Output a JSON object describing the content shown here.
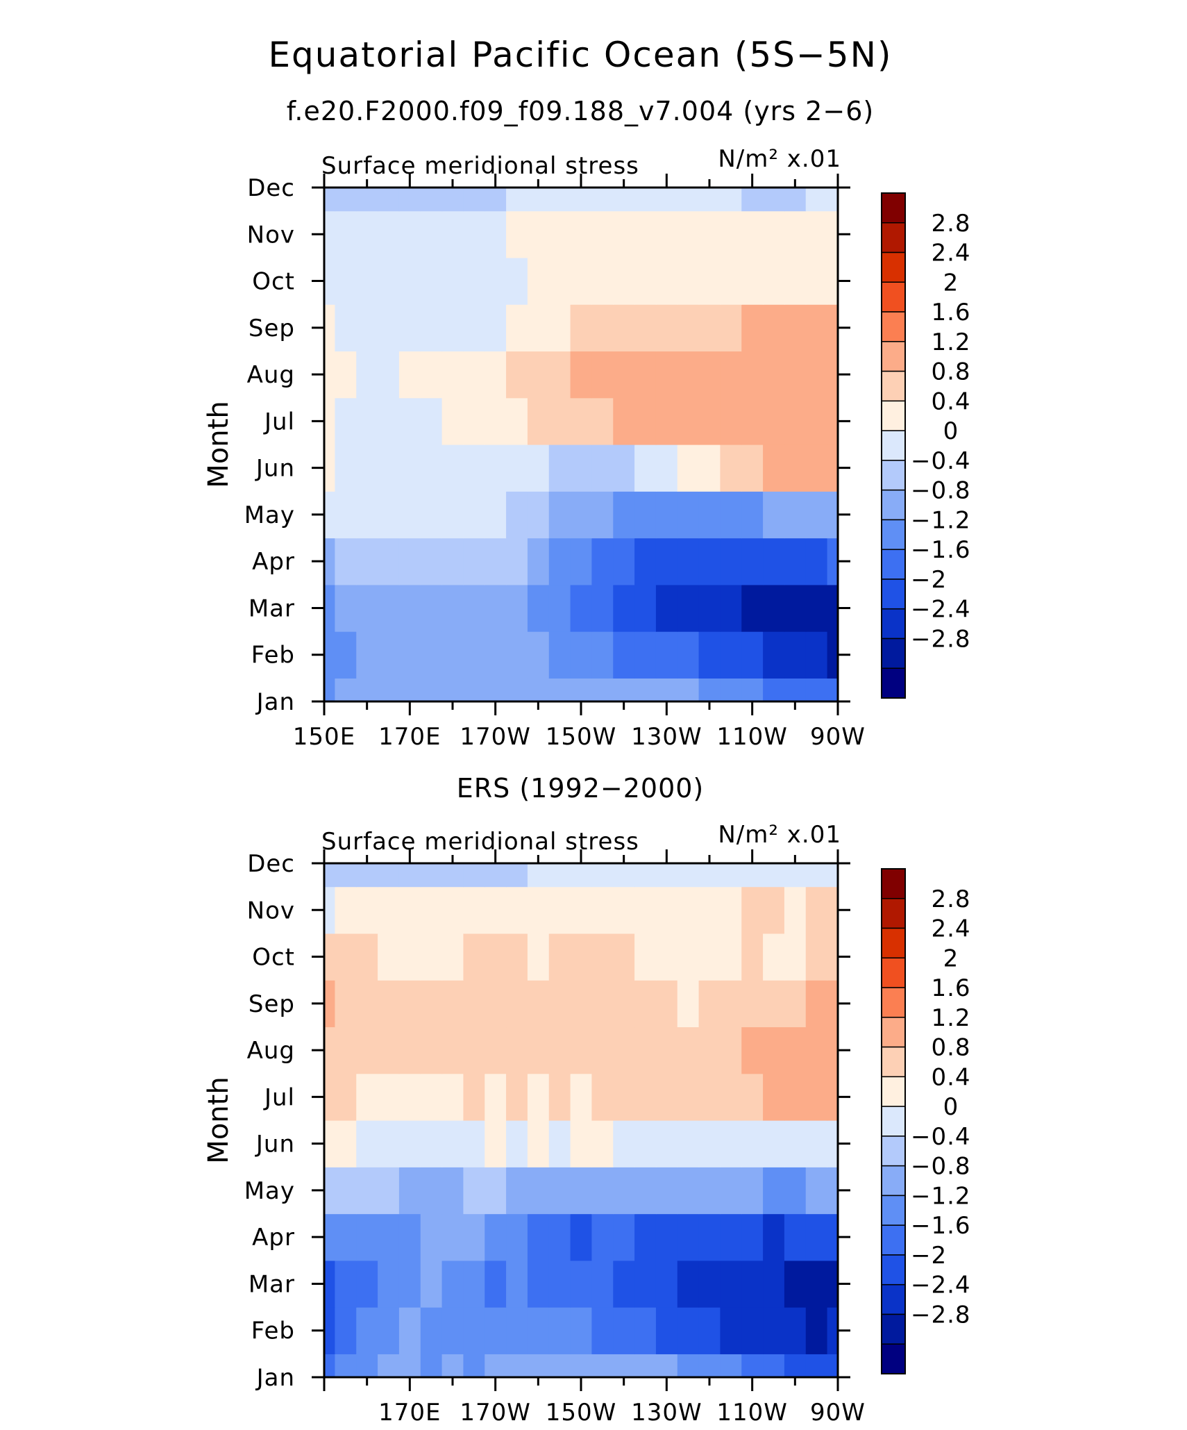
{
  "title": "Equatorial Pacific Ocean (5S−5N)",
  "chart_data": [
    {
      "type": "heatmap",
      "title": "f.e20.F2000.f09_f09.188_v7.004 (yrs 2−6)",
      "left_label": "Surface meridional stress",
      "right_label": "N/m² x.01",
      "ylabel": "Month",
      "x_ticks": [
        "150E",
        "170E",
        "170W",
        "150W",
        "130W",
        "110W",
        "90W"
      ],
      "y_ticks": [
        "Jan",
        "Feb",
        "Mar",
        "Apr",
        "May",
        "Jun",
        "Jul",
        "Aug",
        "Sep",
        "Oct",
        "Nov",
        "Dec"
      ],
      "x": [
        150,
        155,
        160,
        165,
        170,
        175,
        180,
        185,
        190,
        195,
        200,
        205,
        210,
        215,
        220,
        225,
        230,
        235,
        240,
        245,
        250,
        255,
        260,
        265,
        270
      ],
      "y": [
        "Jan",
        "Feb",
        "Mar",
        "Apr",
        "May",
        "Jun",
        "Jul",
        "Aug",
        "Sep",
        "Oct",
        "Nov",
        "Dec"
      ],
      "z": [
        [
          -1.0,
          -0.8,
          -0.7,
          -0.6,
          -0.6,
          -0.5,
          -0.5,
          -0.5,
          -0.5,
          -0.5,
          -0.5,
          -0.5,
          -0.6,
          -0.6,
          -0.7,
          -0.6,
          -0.6,
          -0.8,
          -0.9,
          -1.0,
          -1.2,
          -1.3,
          -1.4,
          -1.5,
          -1.6
        ],
        [
          -1.0,
          -0.9,
          -0.7,
          -0.6,
          -0.6,
          -0.6,
          -0.6,
          -0.6,
          -0.6,
          -0.6,
          -0.7,
          -0.9,
          -1.0,
          -1.2,
          -1.3,
          -1.4,
          -1.5,
          -1.6,
          -1.7,
          -1.8,
          -1.9,
          -2.1,
          -2.2,
          -2.3,
          -2.5
        ],
        [
          -0.9,
          -0.7,
          -0.6,
          -0.6,
          -0.6,
          -0.6,
          -0.6,
          -0.6,
          -0.6,
          -0.7,
          -0.9,
          -1.1,
          -1.3,
          -1.5,
          -1.7,
          -1.9,
          -2.1,
          -2.2,
          -2.3,
          -2.4,
          -2.5,
          -2.6,
          -2.7,
          -2.8,
          -2.6
        ],
        [
          -0.5,
          -0.4,
          -0.3,
          -0.3,
          -0.3,
          -0.3,
          -0.3,
          -0.3,
          -0.3,
          -0.4,
          -0.7,
          -0.9,
          -1.1,
          -1.3,
          -1.5,
          -1.7,
          -1.8,
          -1.9,
          -1.9,
          -1.9,
          -1.9,
          -1.9,
          -1.8,
          -1.7,
          -1.5
        ],
        [
          0.2,
          0.1,
          0.2,
          0.2,
          0.2,
          0.2,
          0.2,
          0.2,
          0.1,
          -0.1,
          -0.3,
          -0.5,
          -0.7,
          -0.8,
          -0.9,
          -1.0,
          -1.0,
          -1.0,
          -1.0,
          -0.9,
          -0.9,
          -0.8,
          -0.7,
          -0.6,
          -0.5
        ],
        [
          0.5,
          0.3,
          0.3,
          0.3,
          0.3,
          0.3,
          0.3,
          0.3,
          0.3,
          0.2,
          0.1,
          -0.1,
          -0.2,
          -0.2,
          -0.1,
          0.1,
          0.3,
          0.5,
          0.7,
          0.9,
          1.1,
          1.3,
          1.4,
          1.3,
          1.2
        ],
        [
          0.5,
          0.3,
          0.3,
          0.3,
          0.3,
          0.3,
          0.4,
          0.5,
          0.6,
          0.7,
          0.8,
          0.9,
          1.0,
          1.1,
          1.2,
          1.3,
          1.3,
          1.4,
          1.4,
          1.4,
          1.4,
          1.4,
          1.4,
          1.4,
          1.5
        ],
        [
          0.5,
          0.4,
          0.3,
          0.3,
          0.5,
          0.6,
          0.6,
          0.7,
          0.7,
          0.8,
          0.8,
          1.0,
          1.2,
          1.3,
          1.4,
          1.4,
          1.4,
          1.4,
          1.4,
          1.4,
          1.4,
          1.4,
          1.4,
          1.4,
          1.4
        ],
        [
          0.4,
          0.3,
          0.3,
          0.3,
          0.3,
          0.3,
          0.3,
          0.3,
          0.3,
          0.4,
          0.5,
          0.7,
          0.8,
          0.8,
          0.9,
          0.9,
          0.9,
          0.9,
          1.0,
          1.1,
          1.2,
          1.2,
          1.2,
          1.2,
          1.2
        ],
        [
          0.2,
          0.2,
          0.2,
          0.2,
          0.2,
          0.2,
          0.2,
          0.2,
          0.3,
          0.3,
          0.4,
          0.5,
          0.5,
          0.6,
          0.6,
          0.6,
          0.6,
          0.6,
          0.6,
          0.6,
          0.6,
          0.6,
          0.6,
          0.7,
          0.7
        ],
        [
          0.0,
          0.1,
          0.1,
          0.1,
          0.1,
          0.1,
          0.2,
          0.2,
          0.3,
          0.4,
          0.5,
          0.5,
          0.5,
          0.5,
          0.5,
          0.5,
          0.5,
          0.5,
          0.5,
          0.4,
          0.4,
          0.4,
          0.5,
          0.5,
          0.5
        ],
        [
          -0.2,
          -0.2,
          -0.2,
          -0.2,
          -0.2,
          -0.1,
          -0.1,
          -0.1,
          -0.1,
          0.0,
          0.1,
          0.2,
          0.2,
          0.3,
          0.3,
          0.3,
          0.3,
          0.2,
          0.1,
          0.0,
          -0.1,
          -0.2,
          -0.1,
          0.1,
          0.2
        ]
      ]
    },
    {
      "type": "heatmap",
      "title": "ERS (1992−2000)",
      "left_label": "Surface meridional stress",
      "right_label": "N/m² x.01",
      "ylabel": "Month",
      "x_ticks": [
        "170E",
        "170W",
        "150W",
        "130W",
        "110W",
        "90W"
      ],
      "y_ticks": [
        "Jan",
        "Feb",
        "Mar",
        "Apr",
        "May",
        "Jun",
        "Jul",
        "Aug",
        "Sep",
        "Oct",
        "Nov",
        "Dec"
      ],
      "x": [
        150,
        155,
        160,
        165,
        170,
        175,
        180,
        185,
        190,
        195,
        200,
        205,
        210,
        215,
        220,
        225,
        230,
        235,
        240,
        245,
        250,
        255,
        260,
        265,
        270
      ],
      "y": [
        "Jan",
        "Feb",
        "Mar",
        "Apr",
        "May",
        "Jun",
        "Jul",
        "Aug",
        "Sep",
        "Oct",
        "Nov",
        "Dec"
      ],
      "z": [
        [
          -1.3,
          -1.1,
          -0.9,
          -0.8,
          -0.6,
          -0.9,
          -0.7,
          -0.9,
          -0.6,
          -0.8,
          -0.7,
          -0.8,
          -0.6,
          -0.7,
          -0.5,
          -0.6,
          -0.7,
          -0.9,
          -1.0,
          -1.2,
          -1.4,
          -1.6,
          -1.8,
          -1.9,
          -2.0
        ],
        [
          -1.8,
          -1.5,
          -1.2,
          -1.0,
          -0.8,
          -1.1,
          -0.9,
          -1.2,
          -1.0,
          -1.2,
          -1.0,
          -1.2,
          -1.1,
          -1.3,
          -1.4,
          -1.6,
          -1.8,
          -1.9,
          -2.0,
          -2.1,
          -2.2,
          -2.3,
          -2.4,
          -2.5,
          -2.4
        ],
        [
          -2.0,
          -1.6,
          -1.3,
          -1.0,
          -0.9,
          -0.7,
          -0.9,
          -1.1,
          -1.3,
          -1.2,
          -1.3,
          -1.4,
          -1.3,
          -1.5,
          -1.7,
          -1.8,
          -2.0,
          -2.1,
          -2.2,
          -2.4,
          -2.2,
          -2.4,
          -2.6,
          -2.7,
          -2.6
        ],
        [
          -1.1,
          -1.0,
          -1.0,
          -1.0,
          -0.9,
          -0.8,
          -0.8,
          -0.8,
          -0.9,
          -1.1,
          -1.3,
          -1.5,
          -1.7,
          -1.5,
          -1.6,
          -1.7,
          -1.8,
          -1.8,
          -1.9,
          -1.9,
          -2.0,
          -2.1,
          -2.0,
          -1.9,
          -1.8
        ],
        [
          -0.4,
          -0.3,
          -0.3,
          -0.4,
          -0.5,
          -0.6,
          -0.5,
          -0.4,
          -0.4,
          -0.5,
          -0.6,
          -0.6,
          -0.7,
          -0.6,
          -0.6,
          -0.7,
          -0.7,
          -0.6,
          -0.6,
          -0.7,
          -0.8,
          -0.9,
          -0.9,
          -0.8,
          -0.8
        ],
        [
          0.6,
          0.4,
          0.3,
          0.2,
          0.2,
          0.2,
          0.3,
          0.3,
          0.4,
          0.3,
          0.4,
          0.3,
          0.4,
          0.4,
          0.3,
          0.3,
          0.2,
          0.2,
          0.1,
          0.0,
          0.1,
          0.2,
          0.3,
          0.2,
          0.2
        ],
        [
          1.0,
          0.8,
          0.7,
          0.6,
          0.7,
          0.6,
          0.7,
          0.8,
          0.7,
          0.8,
          0.6,
          0.8,
          0.7,
          0.9,
          0.8,
          0.9,
          0.9,
          0.8,
          0.9,
          1.0,
          1.1,
          1.2,
          1.3,
          1.4,
          1.3
        ],
        [
          1.1,
          1.0,
          0.9,
          0.8,
          0.9,
          0.8,
          0.9,
          1.0,
          0.9,
          1.1,
          0.9,
          1.1,
          1.0,
          1.0,
          1.1,
          1.1,
          1.0,
          0.9,
          1.0,
          1.1,
          1.2,
          1.3,
          1.3,
          1.4,
          1.4
        ],
        [
          1.3,
          1.0,
          0.9,
          0.8,
          0.8,
          0.9,
          1.0,
          1.0,
          0.9,
          1.1,
          1.0,
          1.0,
          1.0,
          0.9,
          1.0,
          0.9,
          0.9,
          0.7,
          0.8,
          0.9,
          0.9,
          1.0,
          1.0,
          1.2,
          1.3
        ],
        [
          0.8,
          0.9,
          0.8,
          0.7,
          0.6,
          0.6,
          0.7,
          0.8,
          0.9,
          0.8,
          0.7,
          0.9,
          0.8,
          0.8,
          0.8,
          0.7,
          0.7,
          0.6,
          0.6,
          0.7,
          0.8,
          0.7,
          0.7,
          0.9,
          1.1
        ],
        [
          0.3,
          0.4,
          0.5,
          0.5,
          0.4,
          0.4,
          0.5,
          0.6,
          0.6,
          0.5,
          0.5,
          0.6,
          0.5,
          0.4,
          0.4,
          0.5,
          0.4,
          0.4,
          0.6,
          0.7,
          0.8,
          0.8,
          0.7,
          0.8,
          0.9
        ],
        [
          -0.3,
          -0.2,
          -0.2,
          -0.3,
          -0.3,
          -0.2,
          -0.2,
          -0.1,
          -0.1,
          -0.1,
          0.0,
          0.1,
          0.1,
          0.1,
          0.1,
          0.2,
          0.2,
          0.3,
          0.2,
          0.2,
          0.2,
          0.3,
          0.3,
          0.2,
          0.2
        ]
      ]
    }
  ],
  "colorbar": {
    "levels": [
      "2.8",
      "2.4",
      "2",
      "1.6",
      "1.2",
      "0.8",
      "0.4",
      "0",
      "−0.4",
      "−0.8",
      "−1.2",
      "−1.6",
      "−2",
      "−2.4",
      "−2.8"
    ],
    "colors": [
      "#000080",
      "#001a9e",
      "#0a33c8",
      "#1f52e6",
      "#3d70f2",
      "#5f8ff5",
      "#88acf7",
      "#b3cafb",
      "#dbe8fc",
      "#fff0e0",
      "#fdd0b5",
      "#fcac89",
      "#fb7f52",
      "#f05020",
      "#d83000",
      "#b01800",
      "#800000"
    ],
    "bounds": [
      -3.2,
      -2.8,
      -2.4,
      -2.0,
      -1.6,
      -1.2,
      -0.8,
      -0.4,
      0,
      0.4,
      0.8,
      1.2,
      1.6,
      2.0,
      2.4,
      2.8,
      3.2
    ]
  }
}
